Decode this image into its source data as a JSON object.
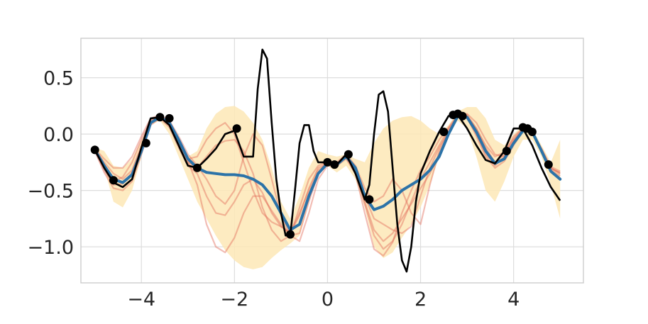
{
  "chart_data": {
    "type": "line",
    "title": "",
    "xlabel": "",
    "ylabel": "",
    "xlim": [
      -5.3,
      5.5
    ],
    "ylim": [
      -1.32,
      0.85
    ],
    "grid": true,
    "legend": "none",
    "x_ticks": [
      {
        "value": -4,
        "label": "−4"
      },
      {
        "value": -2,
        "label": "−2"
      },
      {
        "value": 0,
        "label": "0"
      },
      {
        "value": 2,
        "label": "2"
      },
      {
        "value": 4,
        "label": "4"
      }
    ],
    "y_ticks": [
      {
        "value": 0.5,
        "label": "0.5"
      },
      {
        "value": 0.0,
        "label": "0.0"
      },
      {
        "value": -0.5,
        "label": "−0.5"
      },
      {
        "value": -1.0,
        "label": "−1.0"
      }
    ],
    "colors": {
      "band": "#fde7b6",
      "mean": "#2c73a8",
      "truth": "#000000",
      "samples": "#e26d5c",
      "points": "#000000",
      "grid": "#dddddd",
      "frame": "#cccccc"
    },
    "confidence_band": {
      "x": [
        -5.0,
        -4.8,
        -4.6,
        -4.4,
        -4.2,
        -4.0,
        -3.8,
        -3.6,
        -3.4,
        -3.2,
        -3.0,
        -2.8,
        -2.6,
        -2.4,
        -2.2,
        -2.0,
        -1.8,
        -1.6,
        -1.4,
        -1.2,
        -1.0,
        -0.8,
        -0.6,
        -0.4,
        -0.2,
        0.0,
        0.2,
        0.4,
        0.6,
        0.8,
        1.0,
        1.2,
        1.4,
        1.6,
        1.8,
        2.0,
        2.2,
        2.4,
        2.6,
        2.8,
        3.0,
        3.2,
        3.4,
        3.6,
        3.8,
        4.0,
        4.2,
        4.4,
        4.6,
        4.8,
        5.0
      ],
      "upper": [
        -0.12,
        -0.15,
        -0.28,
        -0.3,
        -0.22,
        -0.05,
        0.12,
        0.18,
        0.1,
        -0.05,
        -0.2,
        -0.15,
        0.05,
        0.18,
        0.24,
        0.25,
        0.2,
        0.1,
        -0.05,
        -0.3,
        -0.6,
        -0.75,
        -0.55,
        -0.3,
        -0.15,
        -0.18,
        -0.2,
        -0.18,
        -0.22,
        -0.25,
        -0.08,
        0.05,
        0.12,
        0.15,
        0.16,
        0.12,
        0.05,
        0.0,
        0.08,
        0.2,
        0.24,
        0.24,
        0.14,
        -0.05,
        -0.1,
        0.0,
        0.08,
        0.05,
        -0.1,
        -0.25,
        -0.05
      ],
      "lower": [
        -0.17,
        -0.3,
        -0.6,
        -0.65,
        -0.5,
        -0.2,
        0.08,
        0.12,
        0.0,
        -0.2,
        -0.4,
        -0.6,
        -0.75,
        -0.9,
        -1.03,
        -1.12,
        -1.18,
        -1.2,
        -1.18,
        -1.1,
        -1.03,
        -0.97,
        -0.9,
        -0.6,
        -0.35,
        -0.28,
        -0.34,
        -0.28,
        -0.4,
        -0.65,
        -1.0,
        -1.1,
        -1.05,
        -0.92,
        -0.8,
        -0.65,
        -0.45,
        -0.2,
        0.0,
        0.12,
        0.05,
        -0.2,
        -0.5,
        -0.6,
        -0.42,
        -0.2,
        -0.05,
        -0.05,
        -0.2,
        -0.45,
        -0.75
      ]
    },
    "series": [
      {
        "role": "truth",
        "x": [
          -5.0,
          -4.8,
          -4.6,
          -4.4,
          -4.2,
          -4.0,
          -3.8,
          -3.6,
          -3.4,
          -3.2,
          -3.0,
          -2.8,
          -2.6,
          -2.4,
          -2.2,
          -2.0,
          -1.8,
          -1.6,
          -1.5,
          -1.4,
          -1.3,
          -1.2,
          -1.1,
          -1.0,
          -0.9,
          -0.8,
          -0.7,
          -0.6,
          -0.5,
          -0.4,
          -0.3,
          -0.2,
          -0.1,
          0.0,
          0.2,
          0.4,
          0.6,
          0.8,
          0.9,
          1.0,
          1.1,
          1.2,
          1.3,
          1.4,
          1.5,
          1.6,
          1.7,
          1.8,
          1.9,
          2.0,
          2.2,
          2.4,
          2.6,
          2.8,
          3.0,
          3.2,
          3.4,
          3.6,
          3.8,
          4.0,
          4.2,
          4.4,
          4.6,
          4.8,
          5.0
        ],
        "y": [
          -0.14,
          -0.3,
          -0.43,
          -0.47,
          -0.4,
          -0.12,
          0.14,
          0.15,
          0.08,
          -0.1,
          -0.28,
          -0.3,
          -0.22,
          -0.13,
          0.0,
          0.03,
          -0.2,
          -0.2,
          0.4,
          0.75,
          0.67,
          0.1,
          -0.4,
          -0.7,
          -0.9,
          -0.9,
          -0.5,
          -0.08,
          0.08,
          0.08,
          -0.15,
          -0.25,
          -0.25,
          -0.25,
          -0.27,
          -0.18,
          -0.35,
          -0.58,
          -0.45,
          0.0,
          0.35,
          0.38,
          0.2,
          -0.3,
          -0.8,
          -1.12,
          -1.22,
          -1.0,
          -0.6,
          -0.35,
          -0.15,
          0.02,
          0.16,
          0.17,
          0.05,
          -0.1,
          -0.23,
          -0.26,
          -0.15,
          0.05,
          0.05,
          -0.1,
          -0.3,
          -0.47,
          -0.59
        ]
      },
      {
        "role": "mean",
        "x": [
          -5.0,
          -4.8,
          -4.6,
          -4.4,
          -4.2,
          -4.0,
          -3.8,
          -3.6,
          -3.4,
          -3.2,
          -3.0,
          -2.8,
          -2.6,
          -2.4,
          -2.2,
          -2.0,
          -1.8,
          -1.6,
          -1.4,
          -1.2,
          -1.0,
          -0.8,
          -0.6,
          -0.4,
          -0.2,
          0.0,
          0.2,
          0.4,
          0.6,
          0.8,
          1.0,
          1.2,
          1.4,
          1.6,
          1.8,
          2.0,
          2.2,
          2.4,
          2.6,
          2.8,
          3.0,
          3.2,
          3.4,
          3.6,
          3.8,
          4.0,
          4.2,
          4.4,
          4.6,
          4.8,
          5.0
        ],
        "y": [
          -0.14,
          -0.28,
          -0.4,
          -0.43,
          -0.36,
          -0.15,
          0.1,
          0.15,
          0.1,
          -0.05,
          -0.22,
          -0.3,
          -0.34,
          -0.35,
          -0.36,
          -0.36,
          -0.37,
          -0.4,
          -0.45,
          -0.55,
          -0.7,
          -0.85,
          -0.8,
          -0.55,
          -0.35,
          -0.26,
          -0.27,
          -0.2,
          -0.3,
          -0.55,
          -0.67,
          -0.64,
          -0.58,
          -0.5,
          -0.45,
          -0.4,
          -0.32,
          -0.2,
          0.0,
          0.16,
          0.15,
          0.02,
          -0.15,
          -0.26,
          -0.22,
          -0.08,
          0.03,
          0.02,
          -0.15,
          -0.33,
          -0.4
        ]
      },
      {
        "role": "sample",
        "x": [
          -5.0,
          -4.8,
          -4.6,
          -4.4,
          -4.2,
          -4.0,
          -3.8,
          -3.6,
          -3.4,
          -3.2,
          -3.0,
          -2.8,
          -2.6,
          -2.4,
          -2.2,
          -2.0,
          -1.8,
          -1.6,
          -1.4,
          -1.2,
          -1.0,
          -0.8,
          -0.6,
          -0.4,
          -0.2,
          0.0,
          0.2,
          0.4,
          0.6,
          0.8,
          1.0,
          1.2,
          1.4,
          1.6,
          1.8,
          2.0,
          2.2,
          2.4,
          2.6,
          2.8,
          3.0,
          3.2,
          3.4,
          3.6,
          3.8,
          4.0,
          4.2,
          4.4,
          4.6,
          4.8,
          5.0
        ],
        "y": [
          -0.14,
          -0.25,
          -0.35,
          -0.4,
          -0.32,
          -0.1,
          0.12,
          0.16,
          0.08,
          -0.08,
          -0.25,
          -0.3,
          -0.2,
          -0.1,
          -0.06,
          -0.05,
          -0.15,
          -0.35,
          -0.65,
          -0.85,
          -0.95,
          -0.9,
          -0.65,
          -0.4,
          -0.28,
          -0.25,
          -0.27,
          -0.2,
          -0.32,
          -0.62,
          -0.9,
          -1.02,
          -0.95,
          -0.8,
          -0.6,
          -0.4,
          -0.25,
          -0.1,
          0.05,
          0.16,
          0.14,
          0.0,
          -0.18,
          -0.28,
          -0.2,
          -0.05,
          0.04,
          0.02,
          -0.14,
          -0.3,
          -0.35
        ]
      },
      {
        "role": "sample",
        "x": [
          -5.0,
          -4.8,
          -4.6,
          -4.4,
          -4.2,
          -4.0,
          -3.8,
          -3.6,
          -3.4,
          -3.2,
          -3.0,
          -2.8,
          -2.6,
          -2.4,
          -2.2,
          -2.0,
          -1.8,
          -1.6,
          -1.4,
          -1.2,
          -1.0,
          -0.8,
          -0.6,
          -0.4,
          -0.2,
          0.0,
          0.2,
          0.4,
          0.6,
          0.8,
          1.0,
          1.2,
          1.4,
          1.6,
          1.8,
          2.0,
          2.2,
          2.4,
          2.6,
          2.8,
          3.0,
          3.2,
          3.4,
          3.6,
          3.8,
          4.0,
          4.2,
          4.4,
          4.6,
          4.8,
          5.0
        ],
        "y": [
          -0.15,
          -0.32,
          -0.45,
          -0.44,
          -0.34,
          -0.12,
          0.1,
          0.14,
          0.06,
          -0.12,
          -0.28,
          -0.35,
          -0.55,
          -0.7,
          -0.72,
          -0.6,
          -0.45,
          -0.4,
          -0.52,
          -0.7,
          -0.82,
          -0.88,
          -0.72,
          -0.48,
          -0.3,
          -0.26,
          -0.26,
          -0.19,
          -0.3,
          -0.55,
          -0.75,
          -0.8,
          -0.85,
          -0.88,
          -0.82,
          -0.55,
          -0.3,
          -0.12,
          0.02,
          0.15,
          0.17,
          0.05,
          -0.12,
          -0.25,
          -0.18,
          -0.02,
          0.05,
          0.03,
          -0.16,
          -0.32,
          -0.37
        ]
      },
      {
        "role": "sample",
        "x": [
          -5.0,
          -4.8,
          -4.6,
          -4.4,
          -4.2,
          -4.0,
          -3.8,
          -3.6,
          -3.4,
          -3.2,
          -3.0,
          -2.8,
          -2.6,
          -2.4,
          -2.2,
          -2.0,
          -1.8,
          -1.6,
          -1.4,
          -1.2,
          -1.0,
          -0.8,
          -0.6,
          -0.4,
          -0.2,
          0.0,
          0.2,
          0.4,
          0.6,
          0.8,
          1.0,
          1.2,
          1.4,
          1.6,
          1.8,
          2.0,
          2.2,
          2.4,
          2.6,
          2.8,
          3.0,
          3.2,
          3.4,
          3.6,
          3.8,
          4.0,
          4.2,
          4.4,
          4.6,
          4.8,
          5.0
        ],
        "y": [
          -0.14,
          -0.28,
          -0.42,
          -0.38,
          -0.25,
          -0.05,
          0.13,
          0.15,
          0.09,
          -0.06,
          -0.24,
          -0.45,
          -0.8,
          -1.0,
          -1.05,
          -0.92,
          -0.7,
          -0.55,
          -0.55,
          -0.68,
          -0.8,
          -0.9,
          -0.95,
          -0.7,
          -0.4,
          -0.28,
          -0.28,
          -0.22,
          -0.35,
          -0.7,
          -1.02,
          -1.08,
          -0.96,
          -0.7,
          -0.5,
          -0.32,
          -0.2,
          -0.05,
          0.06,
          0.17,
          0.16,
          0.05,
          -0.1,
          -0.2,
          -0.16,
          -0.04,
          0.05,
          0.02,
          -0.13,
          -0.29,
          -0.33
        ]
      },
      {
        "role": "sample",
        "x": [
          -5.0,
          -4.8,
          -4.6,
          -4.4,
          -4.2,
          -4.0,
          -3.8,
          -3.6,
          -3.4,
          -3.2,
          -3.0,
          -2.8,
          -2.6,
          -2.4,
          -2.2,
          -2.0,
          -1.8,
          -1.6,
          -1.4,
          -1.2,
          -1.0,
          -0.8,
          -0.6,
          -0.4,
          -0.2,
          0.0,
          0.2,
          0.4,
          0.6,
          0.8,
          1.0,
          1.2,
          1.4,
          1.6,
          1.8,
          2.0,
          2.2,
          2.4,
          2.6,
          2.8,
          3.0,
          3.2,
          3.4,
          3.6,
          3.8,
          4.0,
          4.2,
          4.4,
          4.6,
          4.8,
          5.0
        ],
        "y": [
          -0.13,
          -0.22,
          -0.3,
          -0.3,
          -0.2,
          -0.02,
          0.14,
          0.17,
          0.12,
          -0.02,
          -0.18,
          -0.28,
          -0.4,
          -0.55,
          -0.62,
          -0.5,
          -0.2,
          0.0,
          -0.1,
          -0.4,
          -0.72,
          -0.9,
          -0.88,
          -0.6,
          -0.35,
          -0.24,
          -0.25,
          -0.18,
          -0.28,
          -0.48,
          -0.6,
          -0.55,
          -0.4,
          -0.5,
          -0.7,
          -0.8,
          -0.45,
          -0.15,
          0.04,
          0.16,
          0.18,
          0.1,
          -0.05,
          -0.18,
          -0.2,
          -0.06,
          0.04,
          0.02,
          -0.13,
          -0.3,
          -0.35
        ]
      },
      {
        "role": "sample",
        "x": [
          -5.0,
          -4.8,
          -4.6,
          -4.4,
          -4.2,
          -4.0,
          -3.8,
          -3.6,
          -3.4,
          -3.2,
          -3.0,
          -2.8,
          -2.6,
          -2.4,
          -2.2,
          -2.0,
          -1.8,
          -1.6,
          -1.4,
          -1.2,
          -1.0,
          -0.8,
          -0.6,
          -0.4,
          -0.2,
          0.0,
          0.2,
          0.4,
          0.6,
          0.8,
          1.0,
          1.2,
          1.4,
          1.6,
          1.8,
          2.0,
          2.2,
          2.4,
          2.6,
          2.8,
          3.0,
          3.2,
          3.4,
          3.6,
          3.8,
          4.0,
          4.2,
          4.4,
          4.6,
          4.8,
          5.0
        ],
        "y": [
          -0.15,
          -0.34,
          -0.48,
          -0.5,
          -0.42,
          -0.18,
          0.08,
          0.14,
          0.1,
          -0.04,
          -0.22,
          -0.2,
          -0.05,
          0.05,
          0.1,
          0.0,
          -0.25,
          -0.5,
          -0.7,
          -0.78,
          -0.82,
          -0.87,
          -0.7,
          -0.5,
          -0.32,
          -0.26,
          -0.27,
          -0.21,
          -0.33,
          -0.6,
          -0.85,
          -0.95,
          -0.88,
          -0.75,
          -0.62,
          -0.48,
          -0.35,
          -0.18,
          0.0,
          0.16,
          0.15,
          -0.02,
          -0.2,
          -0.3,
          -0.24,
          -0.1,
          0.03,
          0.01,
          -0.15,
          -0.31,
          -0.34
        ]
      }
    ],
    "observations": [
      {
        "x": -5.0,
        "y": -0.14
      },
      {
        "x": -4.6,
        "y": -0.41
      },
      {
        "x": -3.9,
        "y": -0.08
      },
      {
        "x": -3.6,
        "y": 0.15
      },
      {
        "x": -3.4,
        "y": 0.14
      },
      {
        "x": -2.8,
        "y": -0.3
      },
      {
        "x": -1.95,
        "y": 0.05
      },
      {
        "x": -0.8,
        "y": -0.89
      },
      {
        "x": 0.0,
        "y": -0.25
      },
      {
        "x": 0.15,
        "y": -0.27
      },
      {
        "x": 0.45,
        "y": -0.18
      },
      {
        "x": 0.9,
        "y": -0.58
      },
      {
        "x": 2.5,
        "y": 0.02
      },
      {
        "x": 2.7,
        "y": 0.17
      },
      {
        "x": 2.8,
        "y": 0.18
      },
      {
        "x": 2.9,
        "y": 0.16
      },
      {
        "x": 3.85,
        "y": -0.15
      },
      {
        "x": 4.2,
        "y": 0.06
      },
      {
        "x": 4.3,
        "y": 0.05
      },
      {
        "x": 4.4,
        "y": 0.02
      },
      {
        "x": 4.75,
        "y": -0.27
      }
    ]
  }
}
